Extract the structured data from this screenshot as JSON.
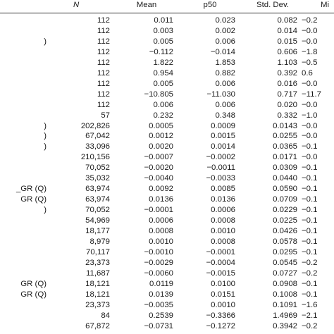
{
  "table": {
    "headers": {
      "n": "N",
      "mean": "Mean",
      "p50": "p50",
      "sd": "Std. Dev.",
      "min": "Mi"
    },
    "rows": [
      {
        "var": "",
        "n": "112",
        "mean": "0.011",
        "p50": "0.023",
        "sd": "0.082",
        "min": "−0.2"
      },
      {
        "var": "",
        "n": "112",
        "mean": "0.003",
        "p50": "0.002",
        "sd": "0.014",
        "min": "−0.0"
      },
      {
        "var": ")",
        "n": "112",
        "mean": "0.005",
        "p50": "0.006",
        "sd": "0.015",
        "min": "−0.0"
      },
      {
        "var": "",
        "n": "112",
        "mean": "−0.112",
        "p50": "−0.014",
        "sd": "0.606",
        "min": "−1.8"
      },
      {
        "var": "",
        "n": "112",
        "mean": "1.822",
        "p50": "1.853",
        "sd": "1.103",
        "min": "−0.5"
      },
      {
        "var": "",
        "n": "112",
        "mean": "0.954",
        "p50": "0.882",
        "sd": "0.392",
        "min": "0.6"
      },
      {
        "var": "",
        "n": "112",
        "mean": "0.005",
        "p50": "0.006",
        "sd": "0.016",
        "min": "−0.0"
      },
      {
        "var": "",
        "n": "112",
        "mean": "−10.805",
        "p50": "−11.030",
        "sd": "0.717",
        "min": "−11.7"
      },
      {
        "var": "",
        "n": "112",
        "mean": "0.006",
        "p50": "0.006",
        "sd": "0.020",
        "min": "−0.0"
      },
      {
        "var": "",
        "n": "57",
        "mean": "0.232",
        "p50": "0.348",
        "sd": "0.332",
        "min": "−1.0"
      },
      {
        "var": ")",
        "n": "202,826",
        "mean": "0.0005",
        "p50": "0.0009",
        "sd": "0.0143",
        "min": "−0.0"
      },
      {
        "var": ")",
        "n": "67,042",
        "mean": "0.0012",
        "p50": "0.0015",
        "sd": "0.0255",
        "min": "−0.0"
      },
      {
        "var": ")",
        "n": "33,096",
        "mean": "0.0020",
        "p50": "0.0014",
        "sd": "0.0365",
        "min": "−0.1"
      },
      {
        "var": "",
        "n": "210,156",
        "mean": "−0.0007",
        "p50": "−0.0002",
        "sd": "0.0171",
        "min": "−0.0"
      },
      {
        "var": "",
        "n": "70,052",
        "mean": "−0.0020",
        "p50": "−0.0011",
        "sd": "0.0309",
        "min": "−0.1"
      },
      {
        "var": "",
        "n": "35,032",
        "mean": "−0.0040",
        "p50": "−0.0033",
        "sd": "0.0440",
        "min": "−0.1"
      },
      {
        "var": "_GR (Q)",
        "n": "63,974",
        "mean": "0.0092",
        "p50": "0.0085",
        "sd": "0.0590",
        "min": "−0.1"
      },
      {
        "var": "GR (Q)",
        "n": "63,974",
        "mean": "0.0136",
        "p50": "0.0136",
        "sd": "0.0709",
        "min": "−0.1"
      },
      {
        "var": ")",
        "n": "70,052",
        "mean": "−0.0001",
        "p50": "0.0006",
        "sd": "0.0229",
        "min": "−0.1"
      },
      {
        "var": "",
        "n": "54,969",
        "mean": "0.0006",
        "p50": "0.0008",
        "sd": "0.0225",
        "min": "−0.1"
      },
      {
        "var": "",
        "n": "18,177",
        "mean": "0.0008",
        "p50": "0.0010",
        "sd": "0.0426",
        "min": "−0.1"
      },
      {
        "var": "",
        "n": "8,979",
        "mean": "0.0010",
        "p50": "0.0008",
        "sd": "0.0578",
        "min": "−0.1"
      },
      {
        "var": "",
        "n": "70,117",
        "mean": "−0.0010",
        "p50": "−0.0001",
        "sd": "0.0295",
        "min": "−0.1"
      },
      {
        "var": "",
        "n": "23,373",
        "mean": "−0.0029",
        "p50": "−0.0004",
        "sd": "0.0545",
        "min": "−0.2"
      },
      {
        "var": "",
        "n": "11,687",
        "mean": "−0.0060",
        "p50": "−0.0015",
        "sd": "0.0727",
        "min": "−0.2"
      },
      {
        "var": "GR (Q)",
        "n": "18,121",
        "mean": "0.0119",
        "p50": "0.0100",
        "sd": "0.0908",
        "min": "−0.1"
      },
      {
        "var": "GR (Q)",
        "n": "18,121",
        "mean": "0.0139",
        "p50": "0.0151",
        "sd": "0.1008",
        "min": "−0.1"
      },
      {
        "var": "",
        "n": "23,373",
        "mean": "−0.0035",
        "p50": "0.0010",
        "sd": "0.1091",
        "min": "−1.6"
      },
      {
        "var": "",
        "n": "84",
        "mean": "0.2539",
        "p50": "−0.3366",
        "sd": "1.4969",
        "min": "−2.1"
      },
      {
        "var": "",
        "n": "67,872",
        "mean": "−0.0731",
        "p50": "−0.1272",
        "sd": "0.3942",
        "min": "−0.2"
      }
    ]
  }
}
